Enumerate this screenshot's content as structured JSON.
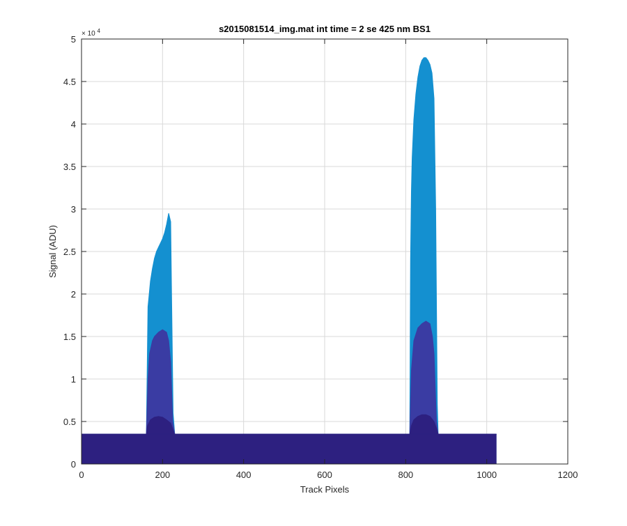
{
  "chart_data": {
    "type": "area",
    "title": "s2015081514_img.mat int time = 2 se  425 nm BS1",
    "xlabel": "Track Pixels",
    "ylabel": "Signal (ADU)",
    "xlim": [
      0,
      1200
    ],
    "ylim": [
      0,
      5
    ],
    "y_multiplier": "× 10^4",
    "y_multiplier_base": "× 10",
    "y_multiplier_exp": "4",
    "xticks": [
      0,
      200,
      400,
      600,
      800,
      1000,
      1200
    ],
    "xtick_labels": [
      "0",
      "200",
      "400",
      "600",
      "800",
      "1000",
      "1200"
    ],
    "yticks": [
      0,
      0.5,
      1,
      1.5,
      2,
      2.5,
      3,
      3.5,
      4,
      4.5,
      5
    ],
    "ytick_labels": [
      "0",
      "0.5",
      "1",
      "1.5",
      "2",
      "2.5",
      "3",
      "3.5",
      "4",
      "4.5",
      "5"
    ],
    "grid": true,
    "baseline": 0.35,
    "x_extent": [
      0,
      1024
    ],
    "series": [
      {
        "color": "#1490d0",
        "x": [
          0,
          160,
          164,
          166,
          170,
          175,
          180,
          185,
          190,
          195,
          200,
          205,
          210,
          215,
          220,
          222,
          226,
          230,
          800,
          810,
          812,
          814,
          816,
          820,
          825,
          830,
          835,
          840,
          845,
          850,
          855,
          860,
          865,
          870,
          874,
          878,
          880,
          1024
        ],
        "values": [
          0.35,
          0.35,
          1.85,
          1.95,
          2.15,
          2.3,
          2.42,
          2.5,
          2.55,
          2.6,
          2.65,
          2.72,
          2.82,
          2.95,
          2.85,
          2.1,
          0.6,
          0.35,
          0.35,
          0.35,
          2.4,
          3.2,
          3.6,
          4.05,
          4.35,
          4.55,
          4.68,
          4.75,
          4.78,
          4.78,
          4.75,
          4.7,
          4.6,
          4.3,
          3.0,
          0.7,
          0.35,
          0.35
        ]
      },
      {
        "color": "#3a3ca3",
        "x": [
          0,
          160,
          164,
          168,
          175,
          180,
          190,
          200,
          210,
          215,
          220,
          225,
          230,
          800,
          810,
          814,
          820,
          830,
          840,
          850,
          860,
          866,
          870,
          876,
          880,
          1024
        ],
        "values": [
          0.35,
          0.35,
          1.0,
          1.3,
          1.45,
          1.5,
          1.55,
          1.58,
          1.55,
          1.45,
          1.2,
          0.5,
          0.35,
          0.35,
          0.35,
          1.1,
          1.45,
          1.6,
          1.65,
          1.68,
          1.65,
          1.5,
          1.3,
          0.5,
          0.35,
          0.35
        ]
      },
      {
        "color": "#2d2080",
        "x": [
          0,
          160,
          163,
          170,
          180,
          190,
          200,
          210,
          220,
          226,
          230,
          800,
          810,
          814,
          820,
          830,
          840,
          850,
          860,
          870,
          876,
          880,
          1024
        ],
        "values": [
          0.35,
          0.35,
          0.45,
          0.52,
          0.55,
          0.56,
          0.55,
          0.52,
          0.48,
          0.4,
          0.35,
          0.35,
          0.35,
          0.45,
          0.52,
          0.56,
          0.58,
          0.58,
          0.56,
          0.5,
          0.42,
          0.35,
          0.35
        ]
      }
    ]
  }
}
